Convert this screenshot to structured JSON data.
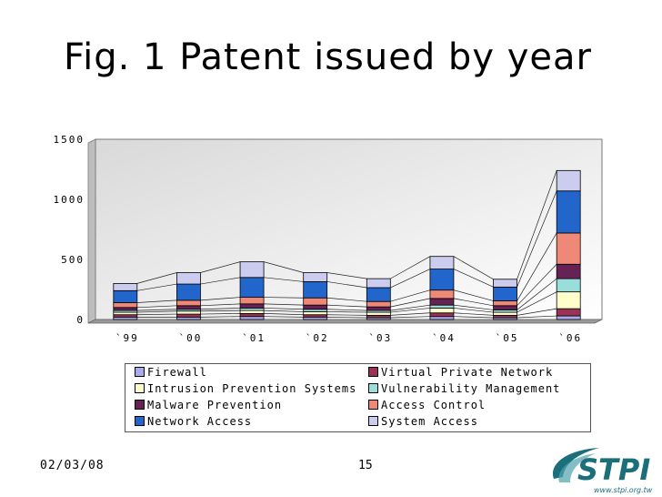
{
  "slide": {
    "title": "Fig. 1 Patent issued by year",
    "date": "02/03/08",
    "page": "15",
    "logo_text": "STPI",
    "logo_url": "www.stpi.org.tw"
  },
  "colors": {
    "Firewall": "#aaaaee",
    "Virtual Private Network": "#993355",
    "Intrusion Prevention Systems": "#ffffcc",
    "Vulnerability Management": "#99dddd",
    "Malware Prevention": "#662255",
    "Access Control": "#ee8877",
    "Network Access": "#2266cc",
    "System Access": "#ccccee",
    "logo": "#1b6f7a"
  },
  "chart_data": {
    "type": "bar",
    "stacked": true,
    "title": "",
    "xlabel": "",
    "ylabel": "",
    "ylim": [
      0,
      1500
    ],
    "yticks": [
      "0",
      "500",
      "1000",
      "1500"
    ],
    "categories": [
      "`99",
      "`00",
      "`01",
      "`02",
      "`03",
      "`04",
      "`05",
      "`06"
    ],
    "series": [
      {
        "name": "Firewall",
        "values": [
          20,
          20,
          25,
          20,
          15,
          25,
          15,
          30
        ]
      },
      {
        "name": "Virtual Private Network",
        "values": [
          20,
          25,
          25,
          20,
          20,
          30,
          20,
          60
        ]
      },
      {
        "name": "Intrusion Prevention Systems",
        "values": [
          20,
          25,
          25,
          25,
          25,
          40,
          25,
          140
        ]
      },
      {
        "name": "Vulnerability Management",
        "values": [
          15,
          15,
          20,
          20,
          15,
          25,
          20,
          110
        ]
      },
      {
        "name": "Malware Prevention",
        "values": [
          25,
          30,
          35,
          35,
          30,
          55,
          35,
          120
        ]
      },
      {
        "name": "Access Control",
        "values": [
          40,
          45,
          55,
          60,
          45,
          70,
          40,
          260
        ]
      },
      {
        "name": "Network Access",
        "values": [
          100,
          135,
          165,
          135,
          115,
          175,
          115,
          350
        ]
      },
      {
        "name": "System Access",
        "values": [
          60,
          95,
          130,
          75,
          75,
          105,
          65,
          170
        ]
      }
    ],
    "grid": false,
    "legend_position": "bottom"
  },
  "legend": {
    "items": [
      {
        "label": "Firewall",
        "color": "#aaaaee"
      },
      {
        "label": "Virtual Private Network",
        "color": "#993355"
      },
      {
        "label": "Intrusion Prevention Systems",
        "color": "#ffffcc"
      },
      {
        "label": "Vulnerability Management",
        "color": "#99dddd"
      },
      {
        "label": "Malware Prevention",
        "color": "#662255"
      },
      {
        "label": "Access Control",
        "color": "#ee8877"
      },
      {
        "label": "Network Access",
        "color": "#2266cc"
      },
      {
        "label": "System Access",
        "color": "#ccccee"
      }
    ]
  }
}
